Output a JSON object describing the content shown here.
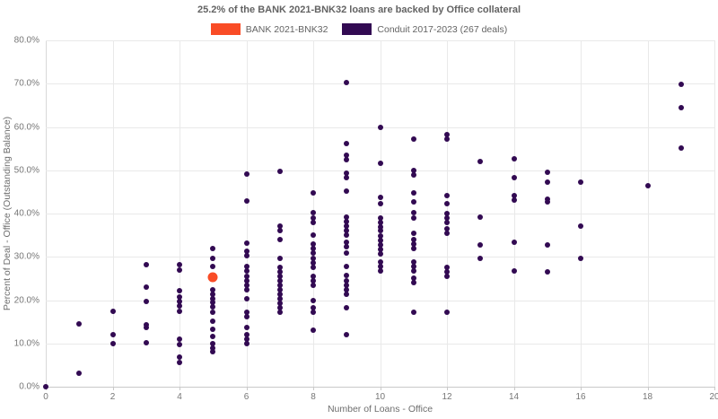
{
  "title": "25.2% of the BANK 2021-BNK32 loans are backed by Office collateral",
  "colors": {
    "bank": "#f94c26",
    "conduit": "#320a52",
    "grid": "#e9e9e9",
    "axis": "#c9c9c9",
    "text": "#6e6e6e"
  },
  "legend": {
    "items": [
      {
        "label": "BANK 2021-BNK32",
        "color": "#f94c26"
      },
      {
        "label": "Conduit 2017-2023 (267 deals)",
        "color": "#320a52"
      }
    ]
  },
  "x_axis": {
    "title": "Number of Loans - Office",
    "min": 0,
    "max": 20,
    "ticks": [
      {
        "value": 0,
        "label": "0"
      },
      {
        "value": 2,
        "label": "2"
      },
      {
        "value": 4,
        "label": "4"
      },
      {
        "value": 6,
        "label": "6"
      },
      {
        "value": 8,
        "label": "8"
      },
      {
        "value": 10,
        "label": "10"
      },
      {
        "value": 12,
        "label": "12"
      },
      {
        "value": 14,
        "label": "14"
      },
      {
        "value": 16,
        "label": "16"
      },
      {
        "value": 18,
        "label": "18"
      },
      {
        "value": 20,
        "label": "20"
      }
    ]
  },
  "y_axis": {
    "title": "Percent of Deal - Office (Outstanding Balance)",
    "min": 0,
    "max": 80,
    "ticks": [
      {
        "value": 80,
        "label": "80.0%"
      },
      {
        "value": 70,
        "label": "70.0%"
      },
      {
        "value": 60,
        "label": "60.0%"
      },
      {
        "value": 50,
        "label": "50.0%"
      },
      {
        "value": 40,
        "label": "40.0%"
      },
      {
        "value": 30,
        "label": "30.0%"
      },
      {
        "value": 20,
        "label": "20.0%"
      },
      {
        "value": 10,
        "label": "10.0%"
      },
      {
        "value": 0,
        "label": "0.0%"
      }
    ]
  },
  "chart_data": {
    "type": "scatter",
    "title": "25.2% of the BANK 2021-BNK32 loans are backed by Office collateral",
    "xlabel": "Number of Loans - Office",
    "ylabel": "Percent of Deal - Office (Outstanding Balance)",
    "xlim": [
      0,
      20
    ],
    "ylim": [
      0,
      80
    ],
    "grid": true,
    "legend_position": "top-center",
    "y_unit": "percent",
    "series": [
      {
        "name": "Conduit 2017-2023 (267 deals)",
        "color": "#320a52",
        "marker_size": 6,
        "points": [
          [
            0,
            0.0
          ],
          [
            1,
            14.5
          ],
          [
            1,
            3.1
          ],
          [
            2,
            17.4
          ],
          [
            2,
            12.0
          ],
          [
            2,
            10.0
          ],
          [
            3,
            28.2
          ],
          [
            3,
            23.0
          ],
          [
            3,
            19.7
          ],
          [
            3,
            14.4
          ],
          [
            3,
            13.7
          ],
          [
            3,
            10.2
          ],
          [
            4,
            28.2
          ],
          [
            4,
            26.9
          ],
          [
            4,
            22.2
          ],
          [
            4,
            20.7
          ],
          [
            4,
            19.7
          ],
          [
            4,
            18.6
          ],
          [
            4,
            17.5
          ],
          [
            4,
            11.0
          ],
          [
            4,
            9.8
          ],
          [
            4,
            6.8
          ],
          [
            4,
            5.6
          ],
          [
            5,
            31.9
          ],
          [
            5,
            29.6
          ],
          [
            5,
            27.7
          ],
          [
            5,
            22.4
          ],
          [
            5,
            21.4
          ],
          [
            5,
            20.4
          ],
          [
            5,
            19.4
          ],
          [
            5,
            18.4
          ],
          [
            5,
            17.3
          ],
          [
            5,
            15.1
          ],
          [
            5,
            13.3
          ],
          [
            5,
            11.6
          ],
          [
            5,
            10.0
          ],
          [
            5,
            9.0
          ],
          [
            5,
            8.0
          ],
          [
            6,
            49.1
          ],
          [
            6,
            42.9
          ],
          [
            6,
            33.2
          ],
          [
            6,
            31.3
          ],
          [
            6,
            30.3
          ],
          [
            6,
            27.8
          ],
          [
            6,
            26.7
          ],
          [
            6,
            25.5
          ],
          [
            6,
            24.5
          ],
          [
            6,
            23.4
          ],
          [
            6,
            22.4
          ],
          [
            6,
            20.3
          ],
          [
            6,
            17.2
          ],
          [
            6,
            16.2
          ],
          [
            6,
            13.7
          ],
          [
            6,
            12.0
          ],
          [
            6,
            11.0
          ],
          [
            6,
            10.0
          ],
          [
            7,
            49.8
          ],
          [
            7,
            37.1
          ],
          [
            7,
            36.1
          ],
          [
            7,
            34.0
          ],
          [
            7,
            29.6
          ],
          [
            7,
            27.6
          ],
          [
            7,
            26.5
          ],
          [
            7,
            25.5
          ],
          [
            7,
            24.5
          ],
          [
            7,
            23.4
          ],
          [
            7,
            22.4
          ],
          [
            7,
            21.3
          ],
          [
            7,
            20.3
          ],
          [
            7,
            19.3
          ],
          [
            7,
            18.2
          ],
          [
            7,
            17.2
          ],
          [
            8,
            44.8
          ],
          [
            8,
            40.2
          ],
          [
            8,
            39.0
          ],
          [
            8,
            37.9
          ],
          [
            8,
            35.0
          ],
          [
            8,
            33.0
          ],
          [
            8,
            31.9
          ],
          [
            8,
            30.9
          ],
          [
            8,
            29.6
          ],
          [
            8,
            28.6
          ],
          [
            8,
            27.6
          ],
          [
            8,
            25.5
          ],
          [
            8,
            24.5
          ],
          [
            8,
            23.4
          ],
          [
            8,
            19.9
          ],
          [
            8,
            18.2
          ],
          [
            8,
            17.2
          ],
          [
            8,
            13.1
          ],
          [
            9,
            70.2
          ],
          [
            9,
            56.2
          ],
          [
            9,
            53.5
          ],
          [
            9,
            52.4
          ],
          [
            9,
            49.3
          ],
          [
            9,
            48.3
          ],
          [
            9,
            45.2
          ],
          [
            9,
            39.2
          ],
          [
            9,
            38.1
          ],
          [
            9,
            37.1
          ],
          [
            9,
            36.1
          ],
          [
            9,
            35.0
          ],
          [
            9,
            33.4
          ],
          [
            9,
            32.3
          ],
          [
            9,
            30.9
          ],
          [
            9,
            27.8
          ],
          [
            9,
            25.7
          ],
          [
            9,
            24.5
          ],
          [
            9,
            23.4
          ],
          [
            9,
            22.4
          ],
          [
            9,
            21.3
          ],
          [
            9,
            18.2
          ],
          [
            9,
            12.0
          ],
          [
            10,
            59.9
          ],
          [
            10,
            51.6
          ],
          [
            10,
            43.7
          ],
          [
            10,
            42.3
          ],
          [
            10,
            39.0
          ],
          [
            10,
            37.9
          ],
          [
            10,
            36.9
          ],
          [
            10,
            36.0
          ],
          [
            10,
            34.8
          ],
          [
            10,
            33.8
          ],
          [
            10,
            32.7
          ],
          [
            10,
            31.7
          ],
          [
            10,
            30.7
          ],
          [
            10,
            28.8
          ],
          [
            10,
            27.8
          ],
          [
            10,
            26.7
          ],
          [
            11,
            57.2
          ],
          [
            11,
            49.9
          ],
          [
            11,
            48.9
          ],
          [
            11,
            44.8
          ],
          [
            11,
            42.7
          ],
          [
            11,
            40.2
          ],
          [
            11,
            39.0
          ],
          [
            11,
            35.4
          ],
          [
            11,
            34.0
          ],
          [
            11,
            32.9
          ],
          [
            11,
            31.9
          ],
          [
            11,
            28.8
          ],
          [
            11,
            27.8
          ],
          [
            11,
            26.7
          ],
          [
            11,
            25.1
          ],
          [
            11,
            24.0
          ],
          [
            11,
            17.2
          ],
          [
            12,
            58.2
          ],
          [
            12,
            57.2
          ],
          [
            12,
            44.1
          ],
          [
            12,
            42.3
          ],
          [
            12,
            40.0
          ],
          [
            12,
            39.0
          ],
          [
            12,
            37.9
          ],
          [
            12,
            36.5
          ],
          [
            12,
            35.4
          ],
          [
            12,
            27.6
          ],
          [
            12,
            26.5
          ],
          [
            12,
            25.5
          ],
          [
            12,
            17.2
          ],
          [
            13,
            52.0
          ],
          [
            13,
            39.2
          ],
          [
            13,
            32.7
          ],
          [
            13,
            29.6
          ],
          [
            14,
            52.6
          ],
          [
            14,
            48.3
          ],
          [
            14,
            44.1
          ],
          [
            14,
            43.1
          ],
          [
            14,
            33.4
          ],
          [
            14,
            26.7
          ],
          [
            15,
            49.5
          ],
          [
            15,
            47.3
          ],
          [
            15,
            43.3
          ],
          [
            15,
            42.7
          ],
          [
            15,
            32.7
          ],
          [
            15,
            26.5
          ],
          [
            16,
            47.3
          ],
          [
            16,
            37.1
          ],
          [
            16,
            29.6
          ],
          [
            18,
            46.4
          ],
          [
            19,
            69.8
          ],
          [
            19,
            64.5
          ],
          [
            19,
            55.1
          ]
        ]
      },
      {
        "name": "BANK 2021-BNK32",
        "color": "#f94c26",
        "marker_size": 11,
        "points": [
          [
            5,
            25.2
          ]
        ]
      }
    ]
  }
}
